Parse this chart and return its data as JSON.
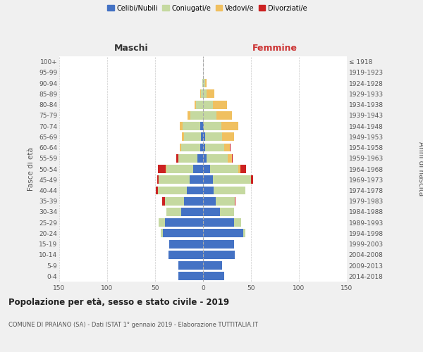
{
  "age_groups": [
    "0-4",
    "5-9",
    "10-14",
    "15-19",
    "20-24",
    "25-29",
    "30-34",
    "35-39",
    "40-44",
    "45-49",
    "50-54",
    "55-59",
    "60-64",
    "65-69",
    "70-74",
    "75-79",
    "80-84",
    "85-89",
    "90-94",
    "95-99",
    "100+"
  ],
  "birth_years": [
    "2014-2018",
    "2009-2013",
    "2004-2008",
    "1999-2003",
    "1994-1998",
    "1989-1993",
    "1984-1988",
    "1979-1983",
    "1974-1978",
    "1969-1973",
    "1964-1968",
    "1959-1963",
    "1954-1958",
    "1949-1953",
    "1944-1948",
    "1939-1943",
    "1934-1938",
    "1929-1933",
    "1924-1928",
    "1919-1923",
    "≤ 1918"
  ],
  "male": {
    "celibi": [
      26,
      26,
      36,
      35,
      42,
      40,
      23,
      20,
      17,
      14,
      10,
      6,
      3,
      2,
      3,
      0,
      0,
      0,
      0,
      0,
      0
    ],
    "coniugati": [
      0,
      0,
      0,
      0,
      2,
      6,
      15,
      20,
      30,
      32,
      28,
      20,
      20,
      18,
      18,
      13,
      7,
      2,
      1,
      0,
      0
    ],
    "vedovi": [
      0,
      0,
      0,
      0,
      0,
      0,
      0,
      0,
      0,
      0,
      1,
      0,
      1,
      2,
      3,
      3,
      2,
      1,
      0,
      0,
      0
    ],
    "divorziati": [
      0,
      0,
      0,
      0,
      0,
      0,
      0,
      3,
      2,
      2,
      8,
      2,
      0,
      0,
      0,
      0,
      0,
      0,
      0,
      0,
      0
    ]
  },
  "female": {
    "nubili": [
      22,
      20,
      33,
      32,
      42,
      32,
      18,
      13,
      11,
      10,
      7,
      4,
      2,
      2,
      1,
      0,
      0,
      0,
      0,
      0,
      0
    ],
    "coniugate": [
      0,
      0,
      0,
      0,
      2,
      8,
      14,
      20,
      33,
      40,
      30,
      22,
      20,
      18,
      18,
      14,
      10,
      4,
      2,
      0,
      0
    ],
    "vedove": [
      0,
      0,
      0,
      0,
      0,
      0,
      0,
      0,
      0,
      0,
      2,
      4,
      6,
      12,
      18,
      16,
      15,
      8,
      2,
      0,
      0
    ],
    "divorziate": [
      0,
      0,
      0,
      0,
      0,
      0,
      0,
      1,
      0,
      2,
      6,
      1,
      1,
      0,
      0,
      0,
      0,
      0,
      0,
      0,
      0
    ]
  },
  "colors": {
    "celibi": "#4472c4",
    "coniugati": "#c5d9a0",
    "vedovi": "#f0c060",
    "divorziati": "#cc2222"
  },
  "xlim": 150,
  "title": "Popolazione per età, sesso e stato civile - 2019",
  "subtitle": "COMUNE DI PRAIANO (SA) - Dati ISTAT 1° gennaio 2019 - Elaborazione TUTTITALIA.IT",
  "ylabel_left": "Fasce di età",
  "ylabel_right": "Anni di nascita",
  "xlabel_maschi": "Maschi",
  "xlabel_femmine": "Femmine",
  "bg_color": "#f0f0f0",
  "plot_bg": "#ffffff"
}
